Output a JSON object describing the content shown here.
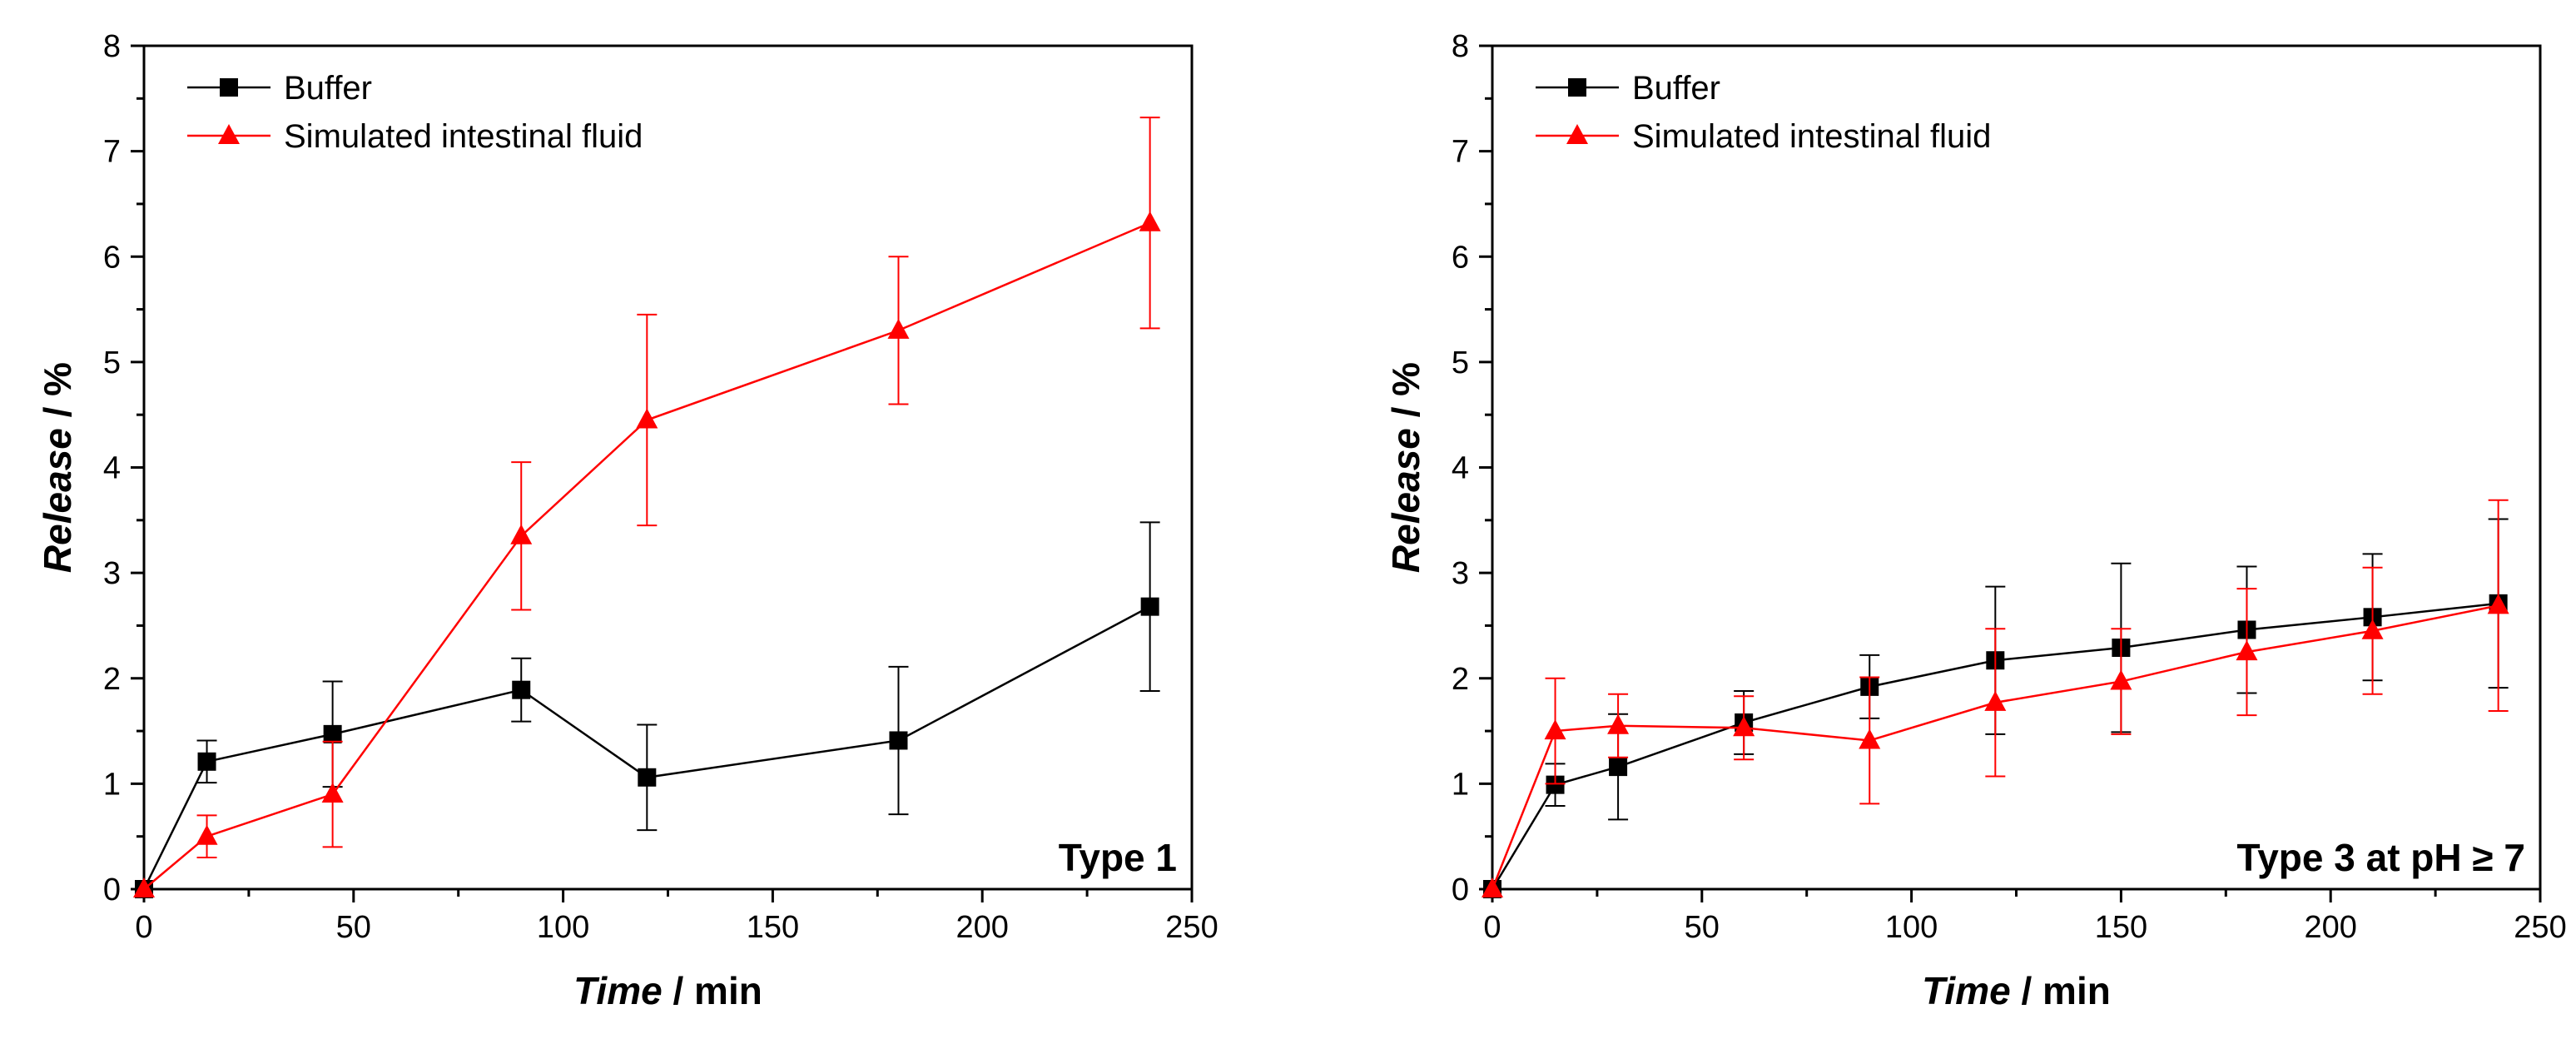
{
  "colors": {
    "buffer": "#000000",
    "sif": "#ff0000",
    "axis": "#000000",
    "background": "#ffffff"
  },
  "chart_data": [
    {
      "type": "line",
      "panel_label": "Type 1",
      "xlabel_italic": "Time",
      "xlabel_unit": " / min",
      "ylabel_italic": "Release",
      "ylabel_unit": " / %",
      "xlim": [
        0,
        250
      ],
      "ylim": [
        0,
        8
      ],
      "xticks": [
        0,
        50,
        100,
        150,
        200,
        250
      ],
      "yticks": [
        0,
        1,
        2,
        3,
        4,
        5,
        6,
        7,
        8
      ],
      "legend_position": "top-left",
      "series": [
        {
          "name": "Buffer",
          "color": "#000000",
          "marker": "square",
          "x": [
            0,
            15,
            45,
            90,
            120,
            180,
            240
          ],
          "y": [
            0,
            1.21,
            1.47,
            1.89,
            1.06,
            1.41,
            2.68
          ],
          "err": [
            0,
            0.2,
            0.5,
            0.3,
            0.5,
            0.7,
            0.8
          ]
        },
        {
          "name": "Simulated intestinal fluid",
          "color": "#ff0000",
          "marker": "triangle",
          "x": [
            0,
            15,
            45,
            90,
            120,
            180,
            240
          ],
          "y": [
            0,
            0.5,
            0.9,
            3.35,
            4.45,
            5.3,
            6.32
          ],
          "err": [
            0,
            0.2,
            0.5,
            0.7,
            1.0,
            0.7,
            1.0
          ]
        }
      ]
    },
    {
      "type": "line",
      "panel_label": "Type 3 at pH ≥ 7",
      "xlabel_italic": "Time",
      "xlabel_unit": " / min",
      "ylabel_italic": "Release",
      "ylabel_unit": " / %",
      "xlim": [
        0,
        250
      ],
      "ylim": [
        0,
        8
      ],
      "xticks": [
        0,
        50,
        100,
        150,
        200,
        250
      ],
      "yticks": [
        0,
        1,
        2,
        3,
        4,
        5,
        6,
        7,
        8
      ],
      "legend_position": "top-left",
      "series": [
        {
          "name": "Buffer",
          "color": "#000000",
          "marker": "square",
          "x": [
            0,
            15,
            30,
            60,
            90,
            120,
            150,
            180,
            210,
            240
          ],
          "y": [
            0,
            0.99,
            1.16,
            1.58,
            1.92,
            2.17,
            2.29,
            2.46,
            2.58,
            2.71
          ],
          "err": [
            0,
            0.2,
            0.5,
            0.3,
            0.3,
            0.7,
            0.8,
            0.6,
            0.6,
            0.8
          ]
        },
        {
          "name": "Simulated intestinal fluid",
          "color": "#ff0000",
          "marker": "triangle",
          "x": [
            0,
            15,
            30,
            60,
            90,
            120,
            150,
            180,
            210,
            240
          ],
          "y": [
            0,
            1.5,
            1.55,
            1.53,
            1.41,
            1.77,
            1.97,
            2.25,
            2.45,
            2.69
          ],
          "err": [
            0,
            0.5,
            0.3,
            0.3,
            0.6,
            0.7,
            0.5,
            0.6,
            0.6,
            1.0
          ]
        }
      ]
    }
  ]
}
